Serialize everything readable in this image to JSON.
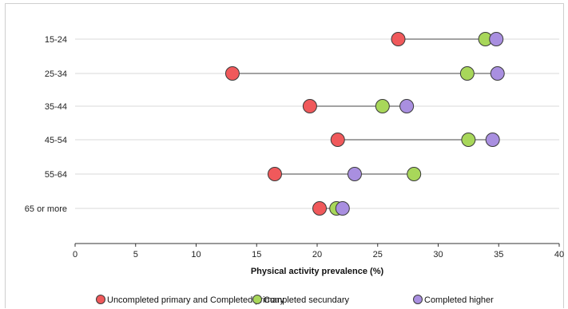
{
  "chart_data": {
    "type": "dot-range",
    "categories": [
      "15-24",
      "25-34",
      "35-44",
      "45-54",
      "55-64",
      "65 or more"
    ],
    "series": [
      {
        "name": "Uncompleted primary and Completed primary",
        "color": "#f0595b",
        "values": [
          26.7,
          13.0,
          19.4,
          21.7,
          16.5,
          20.2
        ]
      },
      {
        "name": "Completed secundary",
        "color": "#a8d75a",
        "values": [
          33.9,
          32.4,
          25.4,
          32.5,
          28.0,
          21.6
        ]
      },
      {
        "name": "Completed higher",
        "color": "#a98fe0",
        "values": [
          34.8,
          34.9,
          27.4,
          34.5,
          23.1,
          22.1
        ]
      }
    ],
    "xlabel": "Physical activity prevalence (%)",
    "xlim": [
      0,
      40
    ],
    "xticks": [
      "0",
      "5",
      "10",
      "15",
      "20",
      "25",
      "30",
      "35",
      "40"
    ],
    "grid": "horizontal",
    "legend_position": "bottom"
  }
}
